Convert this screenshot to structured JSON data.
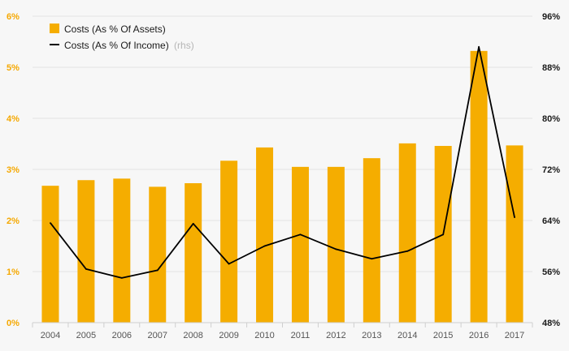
{
  "chart_data": {
    "type": "bar",
    "categories": [
      "2004",
      "2005",
      "2006",
      "2007",
      "2008",
      "2009",
      "2010",
      "2011",
      "2012",
      "2013",
      "2014",
      "2015",
      "2016",
      "2017"
    ],
    "series": [
      {
        "name": "Costs (As % Of Assets)",
        "type": "bar",
        "axis": "left",
        "color": "#f5ad00",
        "values": [
          2.68,
          2.79,
          2.82,
          2.66,
          2.73,
          3.17,
          3.43,
          3.05,
          3.05,
          3.22,
          3.51,
          3.46,
          5.32,
          3.47
        ]
      },
      {
        "name": "Costs (As % Of Income)",
        "name_suffix": "(rhs)",
        "type": "line",
        "axis": "right",
        "color": "#000000",
        "values": [
          63.6,
          56.4,
          55.0,
          56.2,
          63.5,
          57.2,
          60.0,
          61.8,
          59.5,
          58.0,
          59.2,
          61.8,
          91.2,
          64.5
        ]
      }
    ],
    "y_left": {
      "min": 0,
      "max": 6,
      "ticks": [
        "0%",
        "1%",
        "2%",
        "3%",
        "4%",
        "5%",
        "6%"
      ]
    },
    "y_right": {
      "min": 48,
      "max": 96,
      "ticks": [
        "48%",
        "56%",
        "64%",
        "72%",
        "80%",
        "88%",
        "96%"
      ]
    },
    "grid": true,
    "legend_placement": "top-left"
  }
}
